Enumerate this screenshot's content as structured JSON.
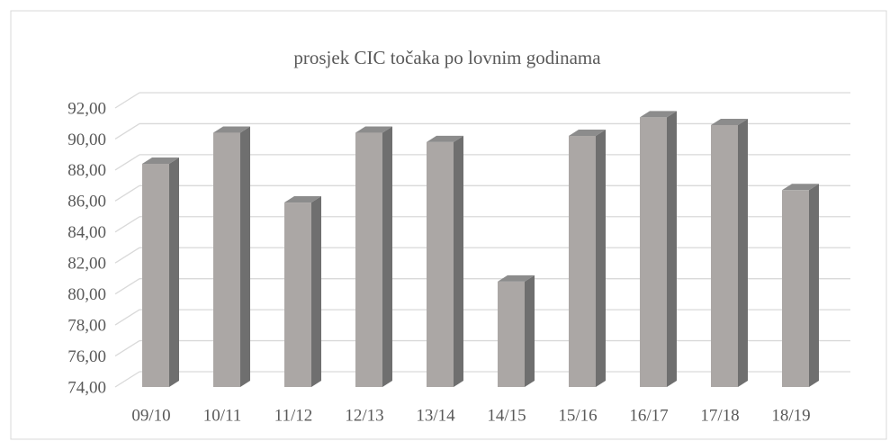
{
  "chart_data": {
    "type": "bar",
    "title": "prosjek CIC točaka po lovnim godinama",
    "categories": [
      "09/10",
      "10/11",
      "11/12",
      "12/13",
      "13/14",
      "14/15",
      "15/16",
      "16/17",
      "17/18",
      "18/19"
    ],
    "values": [
      88.4,
      90.4,
      85.9,
      90.4,
      89.8,
      80.8,
      90.2,
      91.4,
      90.9,
      86.7
    ],
    "color": "#aba7a5",
    "ylim": [
      74,
      92
    ],
    "yticks": [
      {
        "value": 74,
        "label": "74,00"
      },
      {
        "value": 76,
        "label": "76,00"
      },
      {
        "value": 78,
        "label": "78,00"
      },
      {
        "value": 80,
        "label": "80,00"
      },
      {
        "value": 82,
        "label": "82,00"
      },
      {
        "value": 84,
        "label": "84,00"
      },
      {
        "value": 86,
        "label": "86,00"
      },
      {
        "value": 88,
        "label": "88,00"
      },
      {
        "value": 90,
        "label": "90,00"
      },
      {
        "value": 92,
        "label": "92,00"
      }
    ],
    "grid": true
  }
}
